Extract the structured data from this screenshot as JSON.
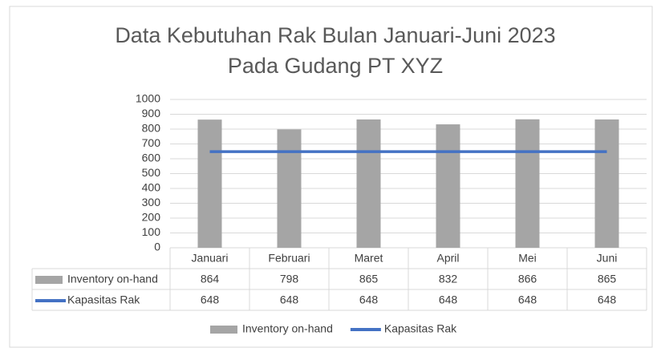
{
  "chart_data": {
    "type": "bar-line",
    "title": [
      "Data Kebutuhan Rak Bulan Januari-Juni 2023",
      "Pada Gudang PT XYZ"
    ],
    "categories": [
      "Januari",
      "Februari",
      "Maret",
      "April",
      "Mei",
      "Juni"
    ],
    "series": [
      {
        "name": "Inventory on-hand",
        "type": "bar",
        "color": "#a5a5a5",
        "values": [
          864,
          798,
          865,
          832,
          866,
          865
        ]
      },
      {
        "name": "Kapasitas Rak",
        "type": "line",
        "color": "#4472c4",
        "values": [
          648,
          648,
          648,
          648,
          648,
          648
        ]
      }
    ],
    "ylim": [
      0,
      1000
    ],
    "yticks": [
      0,
      100,
      200,
      300,
      400,
      500,
      600,
      700,
      800,
      900,
      1000
    ],
    "grid": true,
    "legend": "bottom"
  }
}
